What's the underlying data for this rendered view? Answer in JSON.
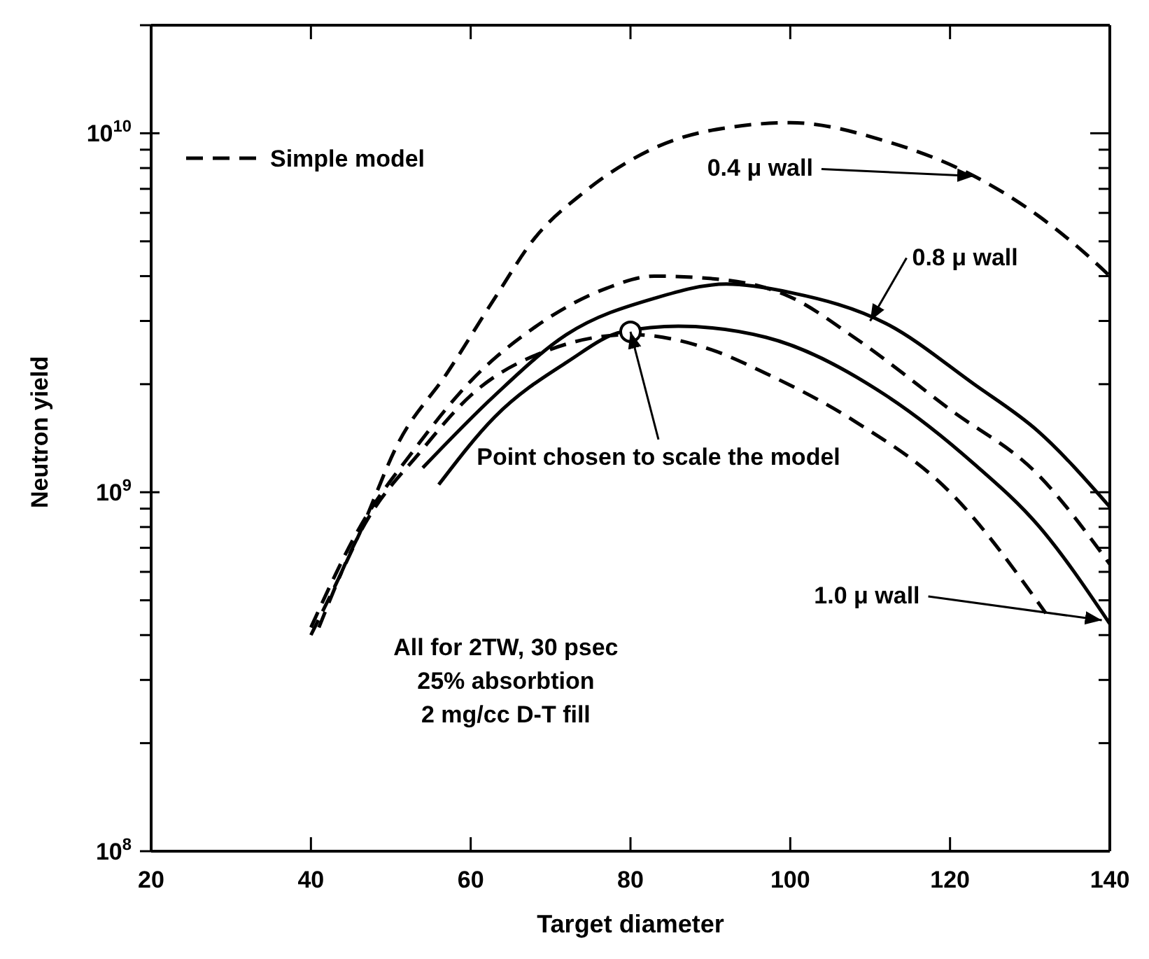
{
  "chart_data": {
    "type": "line",
    "xlabel": "Target diameter",
    "ylabel": "Neutron yield",
    "log": "y",
    "xlim": [
      20,
      140
    ],
    "xticks": [
      20,
      40,
      60,
      80,
      100,
      120,
      140
    ],
    "ylim": [
      100000000,
      20000000000
    ],
    "yticks": [
      {
        "value": 100000000,
        "label": "10$^{8}$"
      },
      {
        "value": 200000000,
        "label": null
      },
      {
        "value": 300000000,
        "label": null
      },
      {
        "value": 400000000,
        "label": null
      },
      {
        "value": 500000000,
        "label": null
      },
      {
        "value": 600000000,
        "label": null
      },
      {
        "value": 700000000,
        "label": null
      },
      {
        "value": 800000000,
        "label": null
      },
      {
        "value": 900000000,
        "label": null
      },
      {
        "value": 1000000000,
        "label": "10$^{9}$"
      },
      {
        "value": 2000000000,
        "label": null
      },
      {
        "value": 3000000000,
        "label": null
      },
      {
        "value": 4000000000,
        "label": null
      },
      {
        "value": 5000000000,
        "label": null
      },
      {
        "value": 6000000000,
        "label": null
      },
      {
        "value": 7000000000,
        "label": null
      },
      {
        "value": 8000000000,
        "label": null
      },
      {
        "value": 9000000000,
        "label": null
      },
      {
        "value": 10000000000,
        "label": "10$^{10}$"
      },
      {
        "value": 20000000000,
        "label": null
      }
    ],
    "legend": "top left",
    "marker": "none",
    "series": [
      {
        "name": "Simple model",
        "color": "#000000",
        "line_style": "dashed",
        "x": [
          40,
          46,
          51,
          57,
          63,
          68,
          74,
          83,
          94,
          100,
          112,
          123,
          131,
          139,
          140
        ],
        "values": [
          400000000,
          760000000,
          1380000000,
          2140000000,
          3470000000,
          5100000000,
          6800000000,
          9100000000,
          10500000000,
          10700000000,
          9500000000,
          7600000000,
          5900000000,
          4200000000,
          4000000000
        ]
      },
      {
        "color": "#000000",
        "line_style": "dashed",
        "x": [
          40,
          46,
          53,
          60,
          68,
          77,
          83,
          92,
          100,
          108,
          120,
          131,
          140
        ],
        "values": [
          420000000,
          790000000,
          1320000000,
          2040000000,
          2880000000,
          3700000000,
          4000000000,
          3900000000,
          3500000000,
          2700000000,
          1700000000,
          1120000000,
          630000000
        ]
      },
      {
        "color": "#000000",
        "line_style": "dashed",
        "x": [
          41,
          46,
          54,
          60,
          70,
          80,
          90,
          97,
          108,
          120,
          132
        ],
        "values": [
          420000000,
          760000000,
          1320000000,
          1860000000,
          2500000000,
          2750000000,
          2500000000,
          2140000000,
          1580000000,
          1000000000,
          460000000
        ]
      },
      {
        "color": "#000000",
        "line_style": "solid",
        "x": [
          54,
          63,
          72,
          83,
          92,
          100,
          112,
          123,
          131,
          140
        ],
        "values": [
          1170000000,
          1860000000,
          2750000000,
          3470000000,
          3800000000,
          3600000000,
          2950000000,
          2000000000,
          1480000000,
          910000000
        ]
      },
      {
        "color": "#000000",
        "line_style": "solid",
        "x": [
          56,
          63,
          72,
          79,
          86,
          97,
          112,
          123,
          131,
          140
        ],
        "values": [
          1050000000,
          1620000000,
          2300000000,
          2800000000,
          2900000000,
          2700000000,
          1860000000,
          1200000000,
          810000000,
          430000000
        ]
      },
      {
        "type": "scatter",
        "color": "#000000",
        "marker": "circle",
        "x": [
          80
        ],
        "values": [
          2800000000
        ]
      }
    ],
    "annotations": [
      {
        "text": "0.4 μ wall",
        "x": 123,
        "y": 7600000000
      },
      {
        "text": "0.8 μ wall",
        "x": 110,
        "y": 3000000000
      },
      {
        "text": "1.0 μ wall",
        "x": 139,
        "y": 440000000
      },
      {
        "text": "Point chosen to scale the model",
        "x": 80,
        "y": 2800000000
      },
      "All for 2TW, 30 psec",
      "25% absorbtion",
      "2 mg/cc D-T fill"
    ]
  }
}
